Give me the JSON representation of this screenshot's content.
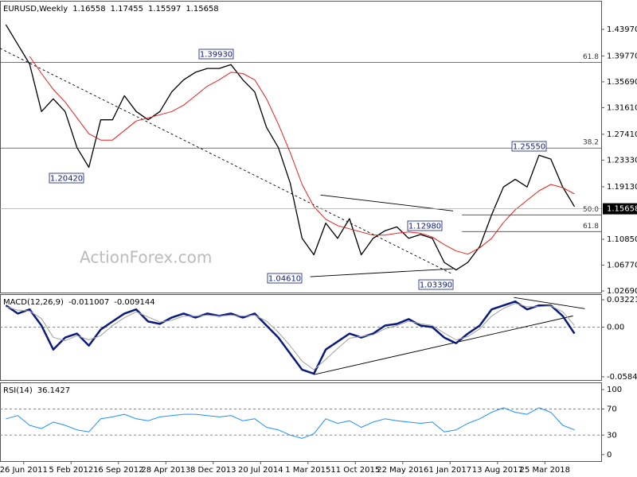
{
  "chart_data": [
    {
      "type": "line",
      "symbol": "EURUSD,Weekly",
      "ohlc": [
        1.16558,
        1.17455,
        1.15597,
        1.15658
      ],
      "watermark": "ActionForex.com",
      "x": [
        -12,
        -4,
        4,
        12,
        20,
        28,
        36,
        44,
        52,
        60,
        68,
        76,
        84,
        92,
        100,
        108,
        116,
        124,
        132,
        140,
        148,
        156,
        164,
        172,
        180,
        188,
        196,
        204,
        212,
        220,
        228,
        236,
        244,
        252,
        260,
        268,
        276,
        284,
        292,
        300,
        308,
        316,
        324,
        332,
        340,
        348,
        356,
        364,
        372
      ],
      "series": [
        {
          "color": "#000000",
          "values": [
            1.447,
            1.416,
            1.385,
            1.31,
            1.33,
            1.31,
            1.253,
            1.222,
            1.297,
            1.297,
            1.335,
            1.31,
            1.297,
            1.31,
            1.341,
            1.36,
            1.372,
            1.378,
            1.378,
            1.384,
            1.36,
            1.341,
            1.285,
            1.253,
            1.197,
            1.11,
            1.084,
            1.134,
            1.11,
            1.141,
            1.084,
            1.11,
            1.122,
            1.128,
            1.11,
            1.116,
            1.11,
            1.072,
            1.06,
            1.072,
            1.097,
            1.147,
            1.191,
            1.203,
            1.191,
            1.241,
            1.235,
            1.191,
            1.16
          ]
        },
        {
          "color": "#e8211e",
          "values": [
            null,
            null,
            1.397,
            1.37,
            1.345,
            1.325,
            1.3,
            1.275,
            1.265,
            1.265,
            1.28,
            1.295,
            1.3,
            1.305,
            1.31,
            1.32,
            1.335,
            1.35,
            1.36,
            1.372,
            1.37,
            1.36,
            1.33,
            1.29,
            1.245,
            1.195,
            1.16,
            1.14,
            1.13,
            1.125,
            1.12,
            1.115,
            1.115,
            1.118,
            1.12,
            1.118,
            1.112,
            1.1,
            1.09,
            1.085,
            1.095,
            1.11,
            1.135,
            1.155,
            1.17,
            1.185,
            1.195,
            1.19,
            1.18
          ]
        }
      ],
      "xlim": [
        -16,
        390
      ],
      "ylim": [
        1.0244,
        1.4847
      ],
      "yticks": [
        {
          "value": 1.4397,
          "label": "1.43970"
        },
        {
          "value": 1.3977,
          "label": "1.39770"
        },
        {
          "value": 1.3569,
          "label": "1.35690"
        },
        {
          "value": 1.3161,
          "label": "1.31610"
        },
        {
          "value": 1.2741,
          "label": "1.27410"
        },
        {
          "value": 1.2333,
          "label": "1.23330"
        },
        {
          "value": 1.1913,
          "label": "1.19130"
        },
        {
          "value": 1.1085,
          "label": "1.10850"
        },
        {
          "value": 1.0677,
          "label": "1.06770"
        },
        {
          "value": 1.0269,
          "label": "1.02690"
        }
      ],
      "levels": [
        {
          "label": "61.8",
          "value": 1.3875,
          "from": -16
        },
        {
          "label": "38.2",
          "value": 1.2524,
          "from": -16
        },
        {
          "label": "50.0",
          "value": 1.1469,
          "from": 296
        },
        {
          "label": "61.8",
          "value": 1.1206,
          "from": 296
        }
      ],
      "trendlines": [
        {
          "x": [
            -16,
            290
          ],
          "y": [
            1.4097,
            1.0531
          ],
          "dashed": true
        },
        {
          "x": [
            200.5,
            290
          ],
          "y": [
            1.1783,
            1.1532
          ],
          "dashed": false
        },
        {
          "x": [
            193.5,
            290
          ],
          "y": [
            1.0494,
            1.062
          ],
          "dashed": false
        }
      ],
      "callouts": [
        "1.39930",
        "1.20420",
        "1.25550",
        "1.04610",
        "1.12980",
        "1.03390"
      ]
    },
    {
      "type": "line",
      "label": "MACD(12,26,9)",
      "readings": [
        -0.011007,
        -0.009144
      ],
      "x": [
        -12,
        -4,
        4,
        12,
        20,
        28,
        36,
        44,
        52,
        60,
        68,
        76,
        84,
        92,
        100,
        108,
        116,
        124,
        132,
        140,
        148,
        156,
        164,
        172,
        180,
        188,
        196,
        204,
        212,
        220,
        228,
        236,
        244,
        252,
        260,
        268,
        276,
        284,
        292,
        300,
        308,
        316,
        324,
        332,
        340,
        348,
        356,
        364,
        372
      ],
      "series": [
        {
          "color": "#0b1a7e",
          "values": [
            0.0255,
            0.016,
            0.0208,
            0.0019,
            -0.0264,
            -0.0123,
            -0.0076,
            -0.0217,
            -0.0028,
            0.0066,
            0.016,
            0.0208,
            0.0066,
            0.0038,
            0.0113,
            0.016,
            0.0113,
            0.016,
            0.0132,
            0.016,
            0.0113,
            0.016,
            0.0019,
            -0.0123,
            -0.0312,
            -0.05,
            -0.0548,
            -0.0264,
            -0.017,
            -0.0076,
            -0.0123,
            -0.0076,
            0.0019,
            0.0038,
            0.0094,
            0.0019,
            0,
            -0.0123,
            -0.0189,
            -0.0076,
            0.0019,
            0.0208,
            0.0255,
            0.0302,
            0.0208,
            0.0255,
            0.0255,
            0.0132,
            -0.0076
          ]
        },
        {
          "color": "#a0a0a0",
          "values": [
            0.024,
            0.02,
            0.019,
            0.01,
            -0.012,
            -0.016,
            -0.01,
            -0.015,
            -0.01,
            0.002,
            0.011,
            0.018,
            0.012,
            0.006,
            0.008,
            0.013,
            0.013,
            0.014,
            0.013,
            0.014,
            0.013,
            0.014,
            0.007,
            -0.006,
            -0.022,
            -0.04,
            -0.05,
            -0.038,
            -0.025,
            -0.013,
            -0.011,
            -0.009,
            -0.002,
            0.002,
            0.007,
            0.004,
            0.002,
            -0.007,
            -0.015,
            -0.011,
            -0.002,
            0.013,
            0.022,
            0.028,
            0.024,
            0.024,
            0.025,
            0.018,
            0.002
          ]
        }
      ],
      "xlim": [
        -16,
        390
      ],
      "ylim": [
        -0.0622,
        0.0388
      ],
      "yticks": [
        0.032215,
        {
          "value": 0,
          "label": "0.00"
        },
        -0.058413
      ],
      "trendlines": [
        {
          "x": [
            196,
            371
          ],
          "y": [
            -0.0558,
            0.0132
          ],
          "dashed": false
        },
        {
          "x": [
            331,
            379
          ],
          "y": [
            0.0349,
            0.0217
          ],
          "dashed": false
        }
      ]
    },
    {
      "type": "line",
      "label": "RSI(14)",
      "readings": [
        36.1427
      ],
      "x": [
        -12,
        -4,
        4,
        12,
        20,
        28,
        36,
        44,
        52,
        60,
        68,
        76,
        84,
        92,
        100,
        108,
        116,
        124,
        132,
        140,
        148,
        156,
        164,
        172,
        180,
        188,
        196,
        204,
        212,
        220,
        228,
        236,
        244,
        252,
        260,
        268,
        276,
        284,
        292,
        300,
        308,
        316,
        324,
        332,
        340,
        348,
        356,
        364,
        372
      ],
      "series": [
        {
          "color": "#1e90ff",
          "values": [
            55,
            60,
            45,
            40,
            50,
            45,
            38,
            35,
            55,
            58,
            62,
            55,
            52,
            58,
            60,
            62,
            62,
            60,
            58,
            60,
            52,
            55,
            42,
            38,
            30,
            25,
            32,
            55,
            48,
            52,
            42,
            50,
            55,
            52,
            50,
            48,
            50,
            35,
            38,
            48,
            55,
            65,
            72,
            65,
            62,
            72,
            65,
            45,
            38
          ]
        }
      ],
      "xlim": [
        -16,
        390
      ],
      "ylim": [
        -10,
        111
      ],
      "yticks": [
        100,
        70,
        30,
        0
      ],
      "xticks": [
        {
          "value": 0,
          "label": "26 Jun 2011"
        },
        {
          "value": 32,
          "label": "5 Feb 2012"
        },
        {
          "value": 64,
          "label": "16 Sep 2012"
        },
        {
          "value": 96,
          "label": "28 Apr 2013"
        },
        {
          "value": 128,
          "label": "8 Dec 2013"
        },
        {
          "value": 160,
          "label": "20 Jul 2014"
        },
        {
          "value": 192,
          "label": "1 Mar 2015"
        },
        {
          "value": 224,
          "label": "11 Oct 2015"
        },
        {
          "value": 256,
          "label": "22 May 2016"
        },
        {
          "value": 288,
          "label": "1 Jan 2017"
        },
        {
          "value": 320,
          "label": "13 Aug 2017"
        },
        {
          "value": 352,
          "label": "25 Mar 2018"
        }
      ]
    }
  ]
}
